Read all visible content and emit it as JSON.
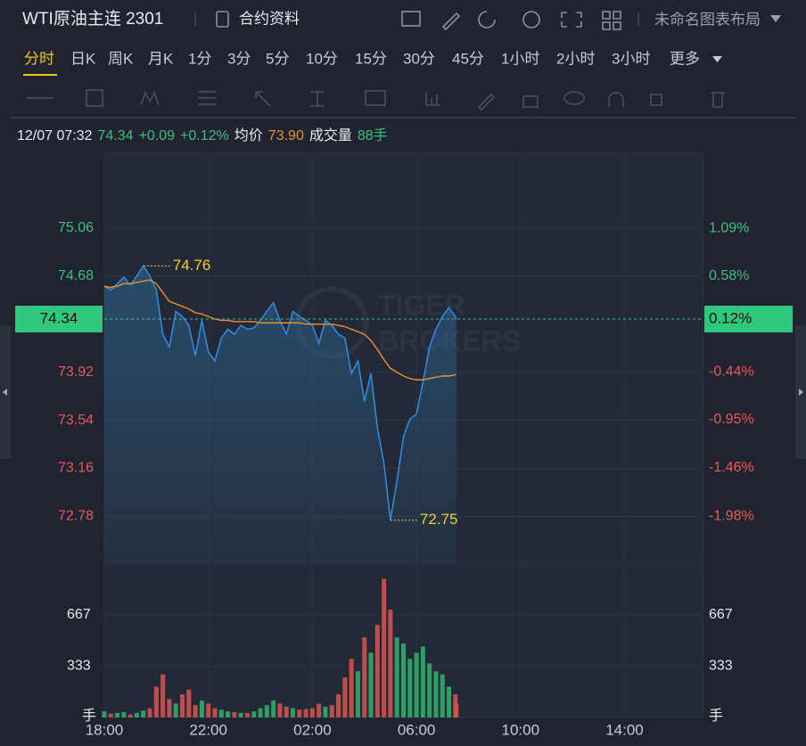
{
  "header": {
    "title": "WTI原油主连 2301",
    "info_link": "合约资料",
    "layout": "未命名图表布局"
  },
  "tabs": [
    "分时",
    "日K",
    "周K",
    "月K",
    "1分",
    "3分",
    "5分",
    "10分",
    "15分",
    "30分",
    "45分",
    "1小时",
    "2小时",
    "3小时",
    "更多"
  ],
  "info": {
    "time": "12/07 07:32",
    "price": "74.34",
    "change": "+0.09",
    "change_pct": "+0.12%",
    "avg_label": "均价",
    "avg": "73.90",
    "vol_label": "成交量",
    "vol": "88手"
  },
  "chart_data": {
    "type": "line",
    "x": [
      "18:00",
      "18:15",
      "18:30",
      "18:45",
      "19:00",
      "19:15",
      "19:30",
      "19:45",
      "20:00",
      "20:15",
      "20:30",
      "20:45",
      "21:00",
      "21:15",
      "21:30",
      "21:45",
      "22:00",
      "22:15",
      "22:30",
      "22:45",
      "23:00",
      "23:15",
      "23:30",
      "23:45",
      "00:00",
      "00:15",
      "00:30",
      "00:45",
      "01:00",
      "01:15",
      "01:30",
      "01:45",
      "02:00",
      "02:15",
      "02:30",
      "02:45",
      "03:00",
      "03:15",
      "03:30",
      "03:45",
      "04:00",
      "04:15",
      "04:30",
      "04:45",
      "05:00",
      "05:15",
      "05:30",
      "05:45",
      "06:00",
      "06:15",
      "06:30",
      "06:45",
      "07:00",
      "07:15",
      "07:30",
      "07:32"
    ],
    "xlim": [
      "18:00",
      "17:00"
    ],
    "xticks": [
      "18:00",
      "22:00",
      "02:00",
      "06:00",
      "10:00",
      "14:00"
    ],
    "series": [
      {
        "color": "#2f8ee6",
        "values": [
          74.6,
          74.57,
          74.62,
          74.67,
          74.61,
          74.68,
          74.76,
          74.68,
          74.57,
          74.22,
          74.12,
          74.4,
          74.36,
          74.29,
          74.05,
          74.33,
          74.08,
          74.01,
          74.19,
          74.26,
          74.22,
          74.29,
          74.26,
          74.27,
          74.33,
          74.4,
          74.47,
          74.33,
          74.22,
          74.4,
          74.36,
          74.33,
          74.29,
          74.15,
          74.33,
          74.29,
          74.22,
          74.19,
          73.91,
          74.01,
          73.69,
          73.91,
          73.48,
          73.2,
          72.75,
          73.06,
          73.41,
          73.55,
          73.59,
          73.84,
          74.12,
          74.26,
          74.36,
          74.43,
          74.36,
          74.34
        ]
      },
      {
        "color": "#e8912d",
        "values": [
          74.6,
          74.59,
          74.6,
          74.62,
          74.62,
          74.63,
          74.64,
          74.65,
          74.62,
          74.55,
          74.48,
          74.46,
          74.44,
          74.42,
          74.39,
          74.38,
          74.36,
          74.34,
          74.33,
          74.33,
          74.32,
          74.32,
          74.32,
          74.32,
          74.31,
          74.31,
          74.31,
          74.31,
          74.31,
          74.31,
          74.31,
          74.3,
          74.3,
          74.3,
          74.3,
          74.3,
          74.29,
          74.28,
          74.26,
          74.24,
          74.22,
          74.17,
          74.1,
          74.02,
          73.95,
          73.92,
          73.89,
          73.87,
          73.86,
          73.86,
          73.87,
          73.88,
          73.89,
          73.89,
          73.9,
          73.9
        ]
      }
    ],
    "ylim": [
      72.41,
      75.65
    ],
    "yticks": [
      75.06,
      74.68,
      73.92,
      73.54,
      73.16,
      72.78
    ],
    "y2lim": [
      -2.48,
      1.89
    ],
    "y2ticks": [
      {
        "value": 1.09,
        "label": "1.09%"
      },
      {
        "value": 0.58,
        "label": "0.58%"
      },
      {
        "value": -0.44,
        "label": "-0.44%"
      },
      {
        "value": -0.95,
        "label": "-0.95%"
      },
      {
        "value": -1.46,
        "label": "-1.46%"
      },
      {
        "value": -1.98,
        "label": "-1.98%"
      }
    ],
    "annotations": [
      {
        "x": "19:30",
        "label": "74.76"
      },
      {
        "x": "05:00",
        "label": "72.75"
      }
    ],
    "last_price_label": "74.34",
    "last_pct_label": "0.12%",
    "volume": {
      "values": [
        40,
        25,
        30,
        35,
        20,
        30,
        45,
        60,
        200,
        280,
        120,
        90,
        150,
        180,
        80,
        110,
        90,
        60,
        50,
        40,
        35,
        30,
        30,
        40,
        60,
        80,
        110,
        90,
        70,
        60,
        50,
        55,
        60,
        90,
        70,
        80,
        150,
        260,
        380,
        300,
        520,
        420,
        600,
        900,
        700,
        520,
        480,
        380,
        420,
        460,
        350,
        300,
        280,
        200,
        150,
        88
      ],
      "color_up": "#2fb36d",
      "color_down": "#d9534f",
      "ylim": [
        0,
        1000
      ],
      "yticks": [
        333,
        667
      ]
    },
    "volume_unit": "手",
    "watermark": [
      "TIGER",
      "BROKERS"
    ]
  }
}
